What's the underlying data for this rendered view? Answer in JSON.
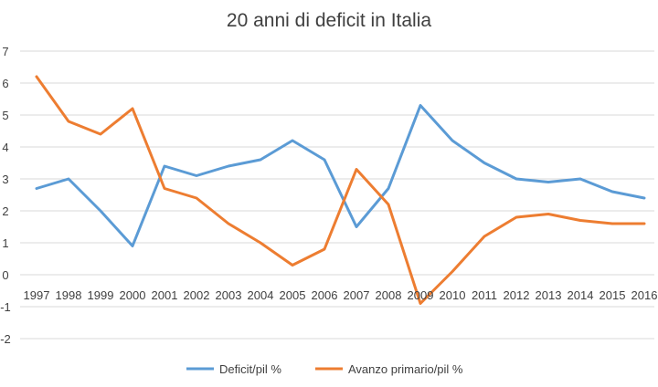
{
  "chart_data": {
    "type": "line",
    "title": "20 anni di deficit in Italia",
    "categories": [
      "1997",
      "1998",
      "1999",
      "2000",
      "2001",
      "2002",
      "2003",
      "2004",
      "2005",
      "2006",
      "2007",
      "2008",
      "2009",
      "2010",
      "2011",
      "2012",
      "2013",
      "2014",
      "2015",
      "2016"
    ],
    "y_tick_labels": [
      "7",
      "6",
      "5",
      "4",
      "3",
      "2",
      "1",
      "0",
      "-1",
      "-2"
    ],
    "ylim": [
      -2,
      7
    ],
    "grid": true,
    "legend_position": "bottom",
    "series": [
      {
        "name": "Deficit/pil %",
        "color": "#5b9bd5",
        "values": [
          2.7,
          3.0,
          2.0,
          0.9,
          3.4,
          3.1,
          3.4,
          3.6,
          4.2,
          3.6,
          1.5,
          2.7,
          5.3,
          4.2,
          3.5,
          3.0,
          2.9,
          3.0,
          2.6,
          2.4
        ]
      },
      {
        "name": "Avanzo primario/pil %",
        "color": "#ed7d31",
        "values": [
          6.2,
          4.8,
          4.4,
          5.2,
          2.7,
          2.4,
          1.6,
          1.0,
          0.3,
          0.8,
          3.3,
          2.2,
          -0.9,
          0.1,
          1.2,
          1.8,
          1.9,
          1.7,
          1.6,
          1.6
        ]
      }
    ]
  }
}
